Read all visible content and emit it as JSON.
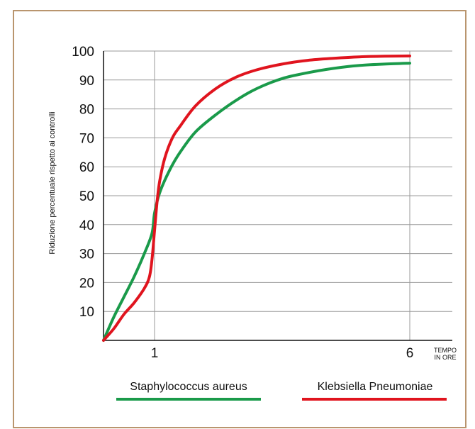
{
  "chart_data": {
    "type": "line",
    "xlabel": "TEMPO IN ORE",
    "xlabel_lines": [
      "TEMPO",
      "IN ORE"
    ],
    "ylabel": "Riduzione percentuale rispetto ai controlli",
    "xlim": [
      0,
      6
    ],
    "ylim": [
      0,
      100
    ],
    "xticks": [
      1,
      6
    ],
    "yticks": [
      10,
      20,
      30,
      40,
      50,
      60,
      70,
      80,
      90,
      100
    ],
    "grid": true,
    "legend_position": "bottom",
    "series": [
      {
        "name": "Staphylococcus aureus",
        "color": "#1a9a4a",
        "x": [
          0,
          0.2,
          0.4,
          0.6,
          0.8,
          0.95,
          1.0,
          1.1,
          1.3,
          1.5,
          1.8,
          2.2,
          2.6,
          3.0,
          3.5,
          4.0,
          4.5,
          5.0,
          5.5,
          6.0
        ],
        "y": [
          0,
          8,
          15,
          22,
          30,
          37,
          44,
          51,
          59,
          65,
          72,
          78,
          83,
          87,
          90.5,
          92.5,
          94,
          95,
          95.5,
          95.8
        ]
      },
      {
        "name": "Klebsiella Pneumoniae",
        "color": "#e0141e",
        "x": [
          0,
          0.2,
          0.4,
          0.6,
          0.8,
          0.9,
          0.95,
          1.0,
          1.05,
          1.1,
          1.2,
          1.35,
          1.5,
          1.8,
          2.2,
          2.6,
          3.0,
          3.5,
          4.0,
          4.5,
          5.0,
          5.5,
          6.0
        ],
        "y": [
          0,
          4,
          9,
          13,
          18,
          22,
          28,
          38,
          48,
          55,
          63,
          70,
          74,
          81,
          87,
          91,
          93.5,
          95.5,
          96.8,
          97.5,
          98,
          98.2,
          98.3
        ]
      }
    ]
  }
}
